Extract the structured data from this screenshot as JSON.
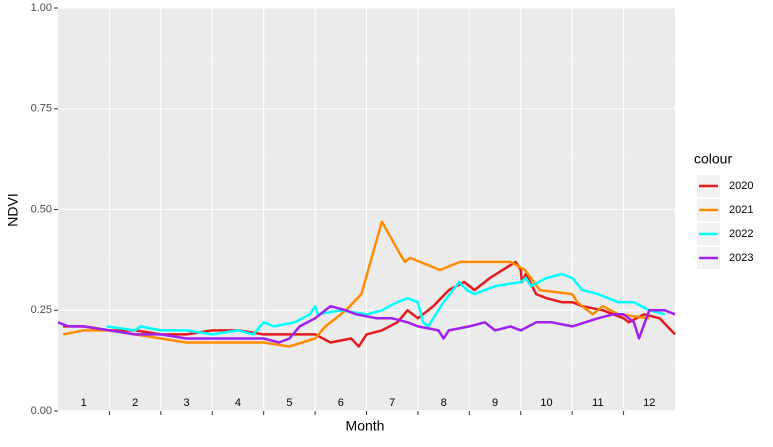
{
  "chart_data": {
    "type": "line",
    "x_label": "Month",
    "y_label": "NDVI",
    "legend_title": "colour",
    "categories": [
      "1",
      "2",
      "3",
      "4",
      "5",
      "6",
      "7",
      "8",
      "9",
      "10",
      "11",
      "12"
    ],
    "xlim": [
      0,
      12
    ],
    "xticks": [
      1,
      2,
      3,
      4,
      5,
      6,
      7,
      8,
      9,
      10,
      11
    ],
    "ylim": [
      0,
      1
    ],
    "yticks": [
      {
        "value": 0,
        "label": "0.00"
      },
      {
        "value": 0.25,
        "label": "0.25"
      },
      {
        "value": 0.5,
        "label": "0.50"
      },
      {
        "value": 0.75,
        "label": "0.75"
      },
      {
        "value": 1,
        "label": "1.00"
      }
    ],
    "grid": true,
    "legend": "right",
    "series": [
      {
        "name": "2020",
        "color": "#e41a1c",
        "x": [
          0.1,
          0.5,
          1,
          1.5,
          2,
          2.5,
          3,
          3.5,
          4,
          4.5,
          5,
          5.3,
          5.7,
          5.85,
          6,
          6.3,
          6.6,
          6.8,
          7,
          7.3,
          7.6,
          7.9,
          8.1,
          8.4,
          8.9,
          9,
          9.02,
          9.1,
          9.3,
          9.5,
          9.8,
          10,
          10.2,
          10.6,
          11,
          11.1,
          11.4,
          11.7,
          12
        ],
        "values": [
          0.21,
          0.21,
          0.2,
          0.2,
          0.19,
          0.19,
          0.2,
          0.2,
          0.19,
          0.19,
          0.19,
          0.17,
          0.18,
          0.16,
          0.19,
          0.2,
          0.22,
          0.25,
          0.23,
          0.26,
          0.3,
          0.32,
          0.3,
          0.33,
          0.37,
          0.35,
          0.32,
          0.34,
          0.29,
          0.28,
          0.27,
          0.27,
          0.26,
          0.25,
          0.23,
          0.22,
          0.24,
          0.23,
          0.19
        ]
      },
      {
        "name": "2021",
        "color": "#ff8c00",
        "x": [
          0.1,
          0.5,
          1,
          1.5,
          2,
          2.5,
          3,
          3.5,
          4,
          4.5,
          5,
          5.2,
          5.6,
          5.9,
          6.3,
          6.65,
          6.75,
          6.85,
          7.43,
          7.82,
          8.8,
          9.08,
          9.37,
          10,
          10.1,
          10.4,
          10.6,
          10.9,
          11.5
        ],
        "values": [
          0.19,
          0.2,
          0.2,
          0.19,
          0.18,
          0.17,
          0.17,
          0.17,
          0.17,
          0.16,
          0.18,
          0.21,
          0.25,
          0.29,
          0.47,
          0.39,
          0.37,
          0.38,
          0.35,
          0.37,
          0.37,
          0.35,
          0.3,
          0.29,
          0.27,
          0.24,
          0.26,
          0.24,
          0.23
        ]
      },
      {
        "name": "2022",
        "color": "#00ffff",
        "x": [
          0.95,
          1.5,
          1.6,
          2,
          2.5,
          3,
          3.5,
          3.8,
          4,
          4.2,
          4.6,
          4.9,
          5,
          5.05,
          5.5,
          6,
          6.3,
          6.6,
          6.8,
          7,
          7.1,
          7.2,
          7.5,
          7.8,
          7.95,
          8.1,
          8.5,
          9,
          9.1,
          9.2,
          9.5,
          9.8,
          10,
          10.2,
          10.5,
          10.7,
          10.9,
          11.2,
          11.5,
          11.8
        ],
        "values": [
          0.21,
          0.2,
          0.21,
          0.2,
          0.2,
          0.19,
          0.2,
          0.19,
          0.22,
          0.21,
          0.22,
          0.24,
          0.26,
          0.24,
          0.25,
          0.24,
          0.25,
          0.27,
          0.28,
          0.27,
          0.22,
          0.21,
          0.27,
          0.32,
          0.3,
          0.29,
          0.31,
          0.32,
          0.33,
          0.31,
          0.33,
          0.34,
          0.33,
          0.3,
          0.29,
          0.28,
          0.27,
          0.27,
          0.25,
          0.24
        ]
      },
      {
        "name": "2023",
        "color": "#a020f0",
        "x": [
          0,
          0.2,
          0.5,
          1,
          1.5,
          2,
          2.5,
          3,
          3.5,
          4,
          4.3,
          4.5,
          4.7,
          5,
          5.3,
          5.6,
          5.8,
          6.2,
          6.5,
          6.8,
          7,
          7.4,
          7.5,
          7.6,
          8,
          8.3,
          8.5,
          8.8,
          9,
          9.3,
          9.6,
          10,
          10.5,
          10.8,
          11,
          11.2,
          11.3,
          11.5,
          11.8,
          12
        ],
        "values": [
          0.22,
          0.21,
          0.21,
          0.2,
          0.19,
          0.19,
          0.18,
          0.18,
          0.18,
          0.18,
          0.17,
          0.18,
          0.21,
          0.23,
          0.26,
          0.25,
          0.24,
          0.23,
          0.23,
          0.22,
          0.21,
          0.2,
          0.18,
          0.2,
          0.21,
          0.22,
          0.2,
          0.21,
          0.2,
          0.22,
          0.22,
          0.21,
          0.23,
          0.24,
          0.24,
          0.22,
          0.18,
          0.25,
          0.25,
          0.24
        ]
      }
    ]
  }
}
